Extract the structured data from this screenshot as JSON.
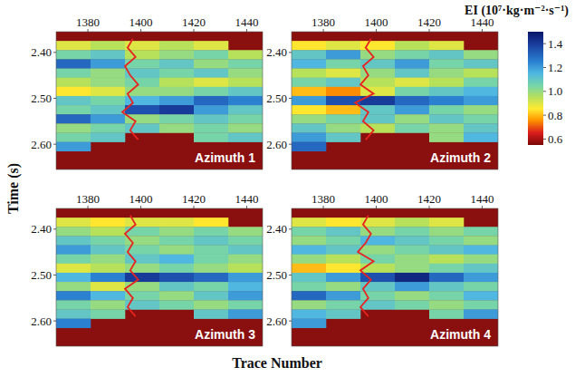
{
  "colorbar": {
    "title": "EI (10⁷·kg·m⁻²·s⁻¹)",
    "range": [
      0.55,
      1.5
    ],
    "ticks": [
      1.4,
      1.2,
      {
        "value": 1,
        "label": "1.0"
      },
      0.8,
      0.6
    ]
  },
  "y_label": "Time (s)",
  "x_label": "Trace Number",
  "chart_data": [
    {
      "type": "heatmap",
      "title": "Azimuth 1",
      "xlim": [
        1368,
        1446
      ],
      "xticks": [
        1380,
        1400,
        1420,
        1440
      ],
      "ylim": [
        2.355,
        2.655
      ],
      "yticks": [
        {
          "value": 2.4,
          "label": "2.40"
        },
        {
          "value": 2.5,
          "label": "2.50"
        },
        {
          "value": 2.6,
          "label": "2.60"
        }
      ],
      "x_edges": [
        1368,
        1381,
        1394,
        1407,
        1420,
        1433,
        1446
      ],
      "y_edges": [
        2.355,
        2.375,
        2.395,
        2.415,
        2.435,
        2.455,
        2.475,
        2.495,
        2.515,
        2.535,
        2.555,
        2.575,
        2.595,
        2.615,
        2.635,
        2.655
      ],
      "cells": [
        [
          null,
          null,
          null,
          null,
          null,
          null
        ],
        [
          0.9,
          0.95,
          0.9,
          0.95,
          0.9,
          null
        ],
        [
          1.05,
          1.1,
          0.95,
          1.0,
          1.05,
          0.95
        ],
        [
          1.3,
          1.2,
          1.05,
          1.1,
          1.0,
          1.05
        ],
        [
          1.05,
          1.0,
          1.1,
          1.05,
          1.1,
          1.0
        ],
        [
          0.95,
          1.0,
          1.05,
          0.95,
          0.9,
          0.95
        ],
        [
          0.85,
          0.9,
          1.0,
          1.0,
          1.05,
          1.1
        ],
        [
          1.1,
          1.05,
          1.15,
          1.2,
          1.3,
          1.25
        ],
        [
          1.05,
          1.1,
          1.35,
          1.4,
          1.2,
          1.1
        ],
        [
          1.3,
          1.2,
          1.0,
          1.05,
          1.1,
          1.05
        ],
        [
          1.0,
          1.05,
          1.1,
          1.0,
          1.05,
          1.0
        ],
        [
          1.05,
          1.1,
          null,
          null,
          1.05,
          1.1
        ],
        [
          1.2,
          null,
          null,
          null,
          null,
          null
        ],
        [
          null,
          null,
          null,
          null,
          null,
          null
        ],
        [
          null,
          null,
          null,
          null,
          null,
          null
        ]
      ],
      "well_curve": {
        "color": "#e8231f",
        "time": [
          2.37,
          2.39,
          2.41,
          2.43,
          2.45,
          2.47,
          2.49,
          2.51,
          2.53,
          2.55,
          2.57,
          2.59
        ],
        "trace": [
          1397,
          1395,
          1398,
          1394,
          1396,
          1399,
          1395,
          1397,
          1393,
          1398,
          1396,
          1399
        ]
      }
    },
    {
      "type": "heatmap",
      "title": "Azimuth 2",
      "xlim": [
        1368,
        1446
      ],
      "xticks": [
        1380,
        1400,
        1420,
        1440
      ],
      "ylim": [
        2.355,
        2.655
      ],
      "yticks": [
        {
          "value": 2.4,
          "label": "2.40"
        },
        {
          "value": 2.5,
          "label": "2.50"
        },
        {
          "value": 2.6,
          "label": "2.60"
        }
      ],
      "x_edges": [
        1368,
        1381,
        1394,
        1407,
        1420,
        1433,
        1446
      ],
      "y_edges": [
        2.355,
        2.375,
        2.395,
        2.415,
        2.435,
        2.455,
        2.475,
        2.495,
        2.515,
        2.535,
        2.555,
        2.575,
        2.595,
        2.615,
        2.635,
        2.655
      ],
      "cells": [
        [
          null,
          null,
          null,
          null,
          null,
          null
        ],
        [
          0.85,
          0.9,
          0.85,
          0.95,
          0.9,
          null
        ],
        [
          1.1,
          1.2,
          1.0,
          1.05,
          1.1,
          1.0
        ],
        [
          1.15,
          1.05,
          1.1,
          1.2,
          1.05,
          1.1
        ],
        [
          0.95,
          0.9,
          1.0,
          1.1,
          1.0,
          0.95
        ],
        [
          1.05,
          1.1,
          0.95,
          0.9,
          0.95,
          1.05
        ],
        [
          0.8,
          0.75,
          0.9,
          1.05,
          1.1,
          1.15
        ],
        [
          1.2,
          1.35,
          1.4,
          1.3,
          1.25,
          1.2
        ],
        [
          0.85,
          0.8,
          1.1,
          1.2,
          1.05,
          1.0
        ],
        [
          1.0,
          1.05,
          1.1,
          1.0,
          1.1,
          1.05
        ],
        [
          1.1,
          1.0,
          0.95,
          1.05,
          1.0,
          1.1
        ],
        [
          1.2,
          1.1,
          null,
          null,
          1.0,
          1.15
        ],
        [
          1.3,
          null,
          null,
          null,
          null,
          null
        ],
        [
          null,
          null,
          null,
          null,
          null,
          null
        ],
        [
          null,
          null,
          null,
          null,
          null,
          null
        ]
      ],
      "well_curve": {
        "color": "#e8231f",
        "time": [
          2.37,
          2.39,
          2.41,
          2.43,
          2.45,
          2.47,
          2.49,
          2.51,
          2.53,
          2.55,
          2.57,
          2.59
        ],
        "trace": [
          1398,
          1396,
          1399,
          1395,
          1397,
          1394,
          1399,
          1392,
          1397,
          1395,
          1399,
          1396
        ]
      }
    },
    {
      "type": "heatmap",
      "title": "Azimuth 3",
      "xlim": [
        1368,
        1446
      ],
      "xticks": [
        1380,
        1400,
        1420,
        1440
      ],
      "ylim": [
        2.355,
        2.655
      ],
      "yticks": [
        {
          "value": 2.4,
          "label": "2.40"
        },
        {
          "value": 2.5,
          "label": "2.50"
        },
        {
          "value": 2.6,
          "label": "2.60"
        }
      ],
      "x_edges": [
        1368,
        1381,
        1394,
        1407,
        1420,
        1433,
        1446
      ],
      "y_edges": [
        2.355,
        2.375,
        2.395,
        2.415,
        2.435,
        2.455,
        2.475,
        2.495,
        2.515,
        2.535,
        2.555,
        2.575,
        2.595,
        2.615,
        2.635,
        2.655
      ],
      "cells": [
        [
          null,
          null,
          null,
          null,
          null,
          null
        ],
        [
          0.9,
          0.85,
          0.9,
          0.9,
          0.85,
          null
        ],
        [
          1.0,
          0.95,
          1.05,
          1.0,
          1.05,
          1.0
        ],
        [
          1.1,
          1.05,
          1.0,
          1.05,
          1.1,
          1.05
        ],
        [
          1.2,
          1.1,
          1.05,
          1.0,
          1.05,
          1.1
        ],
        [
          1.05,
          1.0,
          1.1,
          1.15,
          1.05,
          1.0
        ],
        [
          0.9,
          0.95,
          1.0,
          1.05,
          1.0,
          0.95
        ],
        [
          1.15,
          1.25,
          1.4,
          1.35,
          1.3,
          1.2
        ],
        [
          1.0,
          0.9,
          1.0,
          1.1,
          1.05,
          1.15
        ],
        [
          1.25,
          1.15,
          1.05,
          1.0,
          1.1,
          1.2
        ],
        [
          1.05,
          1.0,
          1.1,
          1.05,
          1.0,
          1.05
        ],
        [
          1.1,
          1.05,
          null,
          null,
          1.1,
          1.2
        ],
        [
          1.25,
          null,
          null,
          null,
          null,
          null
        ],
        [
          null,
          null,
          null,
          null,
          null,
          null
        ],
        [
          null,
          null,
          null,
          null,
          null,
          null
        ]
      ],
      "well_curve": {
        "color": "#e8231f",
        "time": [
          2.37,
          2.39,
          2.41,
          2.43,
          2.45,
          2.47,
          2.49,
          2.51,
          2.53,
          2.55,
          2.57,
          2.59
        ],
        "trace": [
          1396,
          1398,
          1394,
          1397,
          1395,
          1398,
          1396,
          1399,
          1394,
          1397,
          1395,
          1398
        ]
      }
    },
    {
      "type": "heatmap",
      "title": "Azimuth 4",
      "xlim": [
        1368,
        1446
      ],
      "xticks": [
        1380,
        1400,
        1420,
        1440
      ],
      "ylim": [
        2.355,
        2.655
      ],
      "yticks": [
        {
          "value": 2.4,
          "label": "2.40"
        },
        {
          "value": 2.5,
          "label": "2.50"
        },
        {
          "value": 2.6,
          "label": "2.60"
        }
      ],
      "x_edges": [
        1368,
        1381,
        1394,
        1407,
        1420,
        1433,
        1446
      ],
      "y_edges": [
        2.355,
        2.375,
        2.395,
        2.415,
        2.435,
        2.455,
        2.475,
        2.495,
        2.515,
        2.535,
        2.555,
        2.575,
        2.595,
        2.615,
        2.635,
        2.655
      ],
      "cells": [
        [
          null,
          null,
          null,
          null,
          null,
          null
        ],
        [
          0.9,
          0.85,
          0.9,
          0.95,
          0.9,
          null
        ],
        [
          1.05,
          1.1,
          1.0,
          1.05,
          1.0,
          1.05
        ],
        [
          1.0,
          1.05,
          1.15,
          1.1,
          1.05,
          1.0
        ],
        [
          1.15,
          1.1,
          1.0,
          1.05,
          1.1,
          1.15
        ],
        [
          1.0,
          0.95,
          1.05,
          1.0,
          0.95,
          1.0
        ],
        [
          0.8,
          0.85,
          0.95,
          1.0,
          1.05,
          1.1
        ],
        [
          1.1,
          1.2,
          1.35,
          1.45,
          1.3,
          1.2
        ],
        [
          1.05,
          1.0,
          1.1,
          1.2,
          1.1,
          1.05
        ],
        [
          1.3,
          1.2,
          1.05,
          1.0,
          1.05,
          1.15
        ],
        [
          1.0,
          1.05,
          1.1,
          1.05,
          1.0,
          1.05
        ],
        [
          1.15,
          1.1,
          null,
          null,
          1.05,
          1.2
        ],
        [
          1.2,
          null,
          null,
          null,
          null,
          null
        ],
        [
          null,
          null,
          null,
          null,
          null,
          null
        ],
        [
          null,
          null,
          null,
          null,
          null,
          null
        ]
      ],
      "well_curve": {
        "color": "#e8231f",
        "time": [
          2.37,
          2.39,
          2.41,
          2.43,
          2.45,
          2.47,
          2.49,
          2.51,
          2.53,
          2.55,
          2.57,
          2.59
        ],
        "trace": [
          1397,
          1395,
          1398,
          1396,
          1393,
          1399,
          1394,
          1398,
          1395,
          1397,
          1394,
          1397
        ]
      }
    }
  ]
}
